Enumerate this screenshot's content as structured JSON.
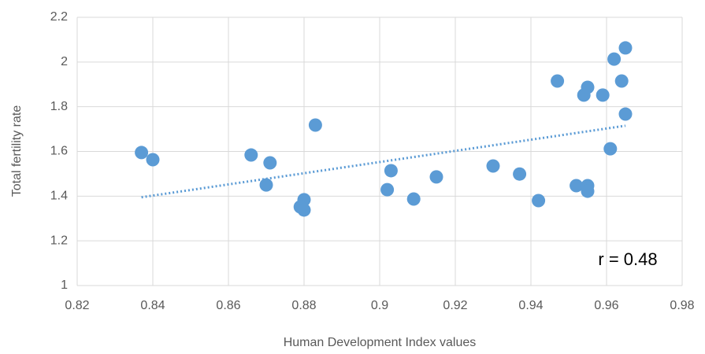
{
  "chart_data": {
    "type": "scatter",
    "x_label": "Human Development Index values",
    "y_label": "Total fertility rate",
    "annotation": "r = 0.48",
    "color": "#5b9bd5",
    "series": [
      {
        "x": [
          0.837,
          0.84,
          0.866,
          0.871,
          0.87,
          0.88,
          0.879,
          0.88,
          0.883,
          0.902,
          0.903,
          0.909,
          0.915,
          0.93,
          0.937,
          0.942,
          0.947,
          0.952,
          0.954,
          0.955,
          0.955,
          0.955,
          0.959,
          0.961,
          0.962,
          0.964,
          0.965,
          0.965
        ],
        "values": [
          1.595,
          1.563,
          1.584,
          1.549,
          1.45,
          1.384,
          1.352,
          1.338,
          1.718,
          1.429,
          1.514,
          1.387,
          1.486,
          1.535,
          1.499,
          1.38,
          1.915,
          1.447,
          1.852,
          1.887,
          1.447,
          1.422,
          1.852,
          1.612,
          2.013,
          1.915,
          2.063,
          1.767
        ]
      }
    ],
    "trendline": {
      "x": [
        0.837,
        0.965
      ],
      "values": [
        1.395,
        1.715
      ]
    },
    "xlim": [
      0.82,
      0.98
    ],
    "xticks": [
      0.82,
      0.84,
      0.86,
      0.88,
      0.9,
      0.92,
      0.94,
      0.96,
      0.98
    ],
    "ylim": [
      1,
      2.2
    ],
    "yticks": [
      1,
      1.2,
      1.4,
      1.6,
      1.8,
      2,
      2.2
    ],
    "grid": true
  }
}
